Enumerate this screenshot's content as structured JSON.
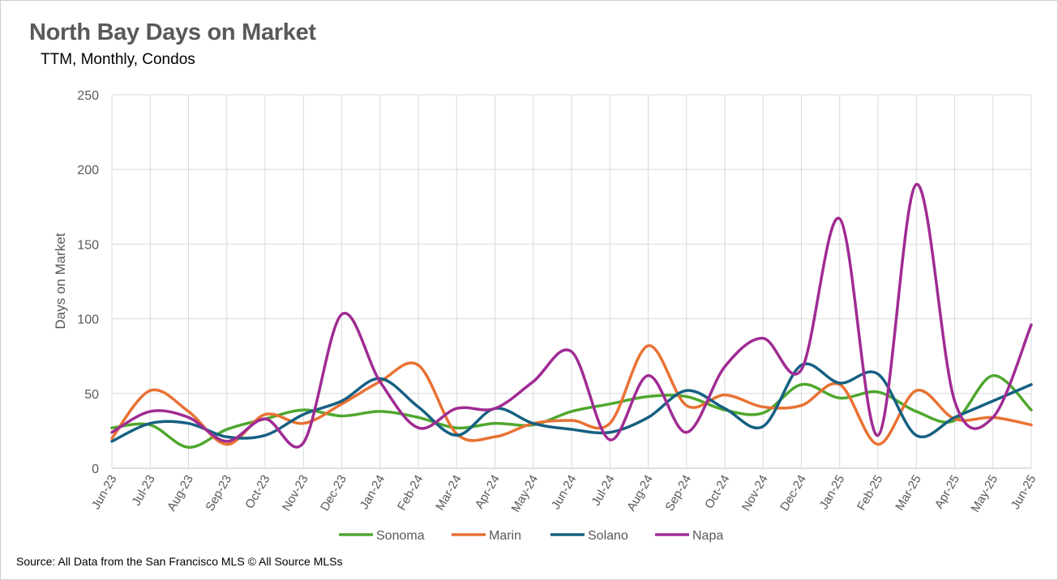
{
  "chart_data": {
    "type": "line",
    "title": "North Bay Days on Market",
    "subtitle": "TTM, Monthly, Condos",
    "xlabel": "",
    "ylabel": "Days on Market",
    "ylim": [
      0,
      250
    ],
    "yticks": [
      0,
      50,
      100,
      150,
      200,
      250
    ],
    "grid": true,
    "smooth": true,
    "legend_position": "bottom",
    "categories": [
      "Jun-23",
      "Jul-23",
      "Aug-23",
      "Sep-23",
      "Oct-23",
      "Nov-23",
      "Dec-23",
      "Jan-24",
      "Feb-24",
      "Mar-24",
      "Apr-24",
      "May-24",
      "Jun-24",
      "Jul-24",
      "Aug-24",
      "Sep-24",
      "Oct-24",
      "Nov-24",
      "Dec-24",
      "Jan-25",
      "Feb-25",
      "Mar-25",
      "Apr-25",
      "May-25",
      "Jun-25"
    ],
    "series": [
      {
        "name": "Sonoma",
        "color": "#4ea72e",
        "values": [
          27,
          29,
          14,
          26,
          33,
          39,
          35,
          38,
          34,
          27,
          30,
          29,
          38,
          43,
          48,
          48,
          39,
          37,
          56,
          47,
          51,
          38,
          32,
          62,
          39
        ]
      },
      {
        "name": "Marin",
        "color": "#e97132",
        "values": [
          20,
          52,
          38,
          16,
          36,
          30,
          43,
          58,
          69,
          23,
          21,
          30,
          32,
          30,
          82,
          42,
          49,
          41,
          42,
          56,
          16,
          52,
          33,
          34,
          29
        ]
      },
      {
        "name": "Solano",
        "color": "#156082",
        "values": [
          18,
          30,
          30,
          21,
          22,
          36,
          45,
          60,
          41,
          22,
          40,
          30,
          26,
          24,
          34,
          52,
          40,
          28,
          69,
          57,
          63,
          22,
          34,
          45,
          56
        ]
      },
      {
        "name": "Napa",
        "color": "#a02b93",
        "values": [
          24,
          38,
          34,
          18,
          33,
          17,
          103,
          58,
          27,
          40,
          40,
          58,
          78,
          19,
          62,
          24,
          68,
          87,
          66,
          167,
          22,
          190,
          45,
          34,
          96
        ]
      }
    ]
  },
  "source_note": "Source: All Data from the San Francisco MLS © All Source MLSs"
}
